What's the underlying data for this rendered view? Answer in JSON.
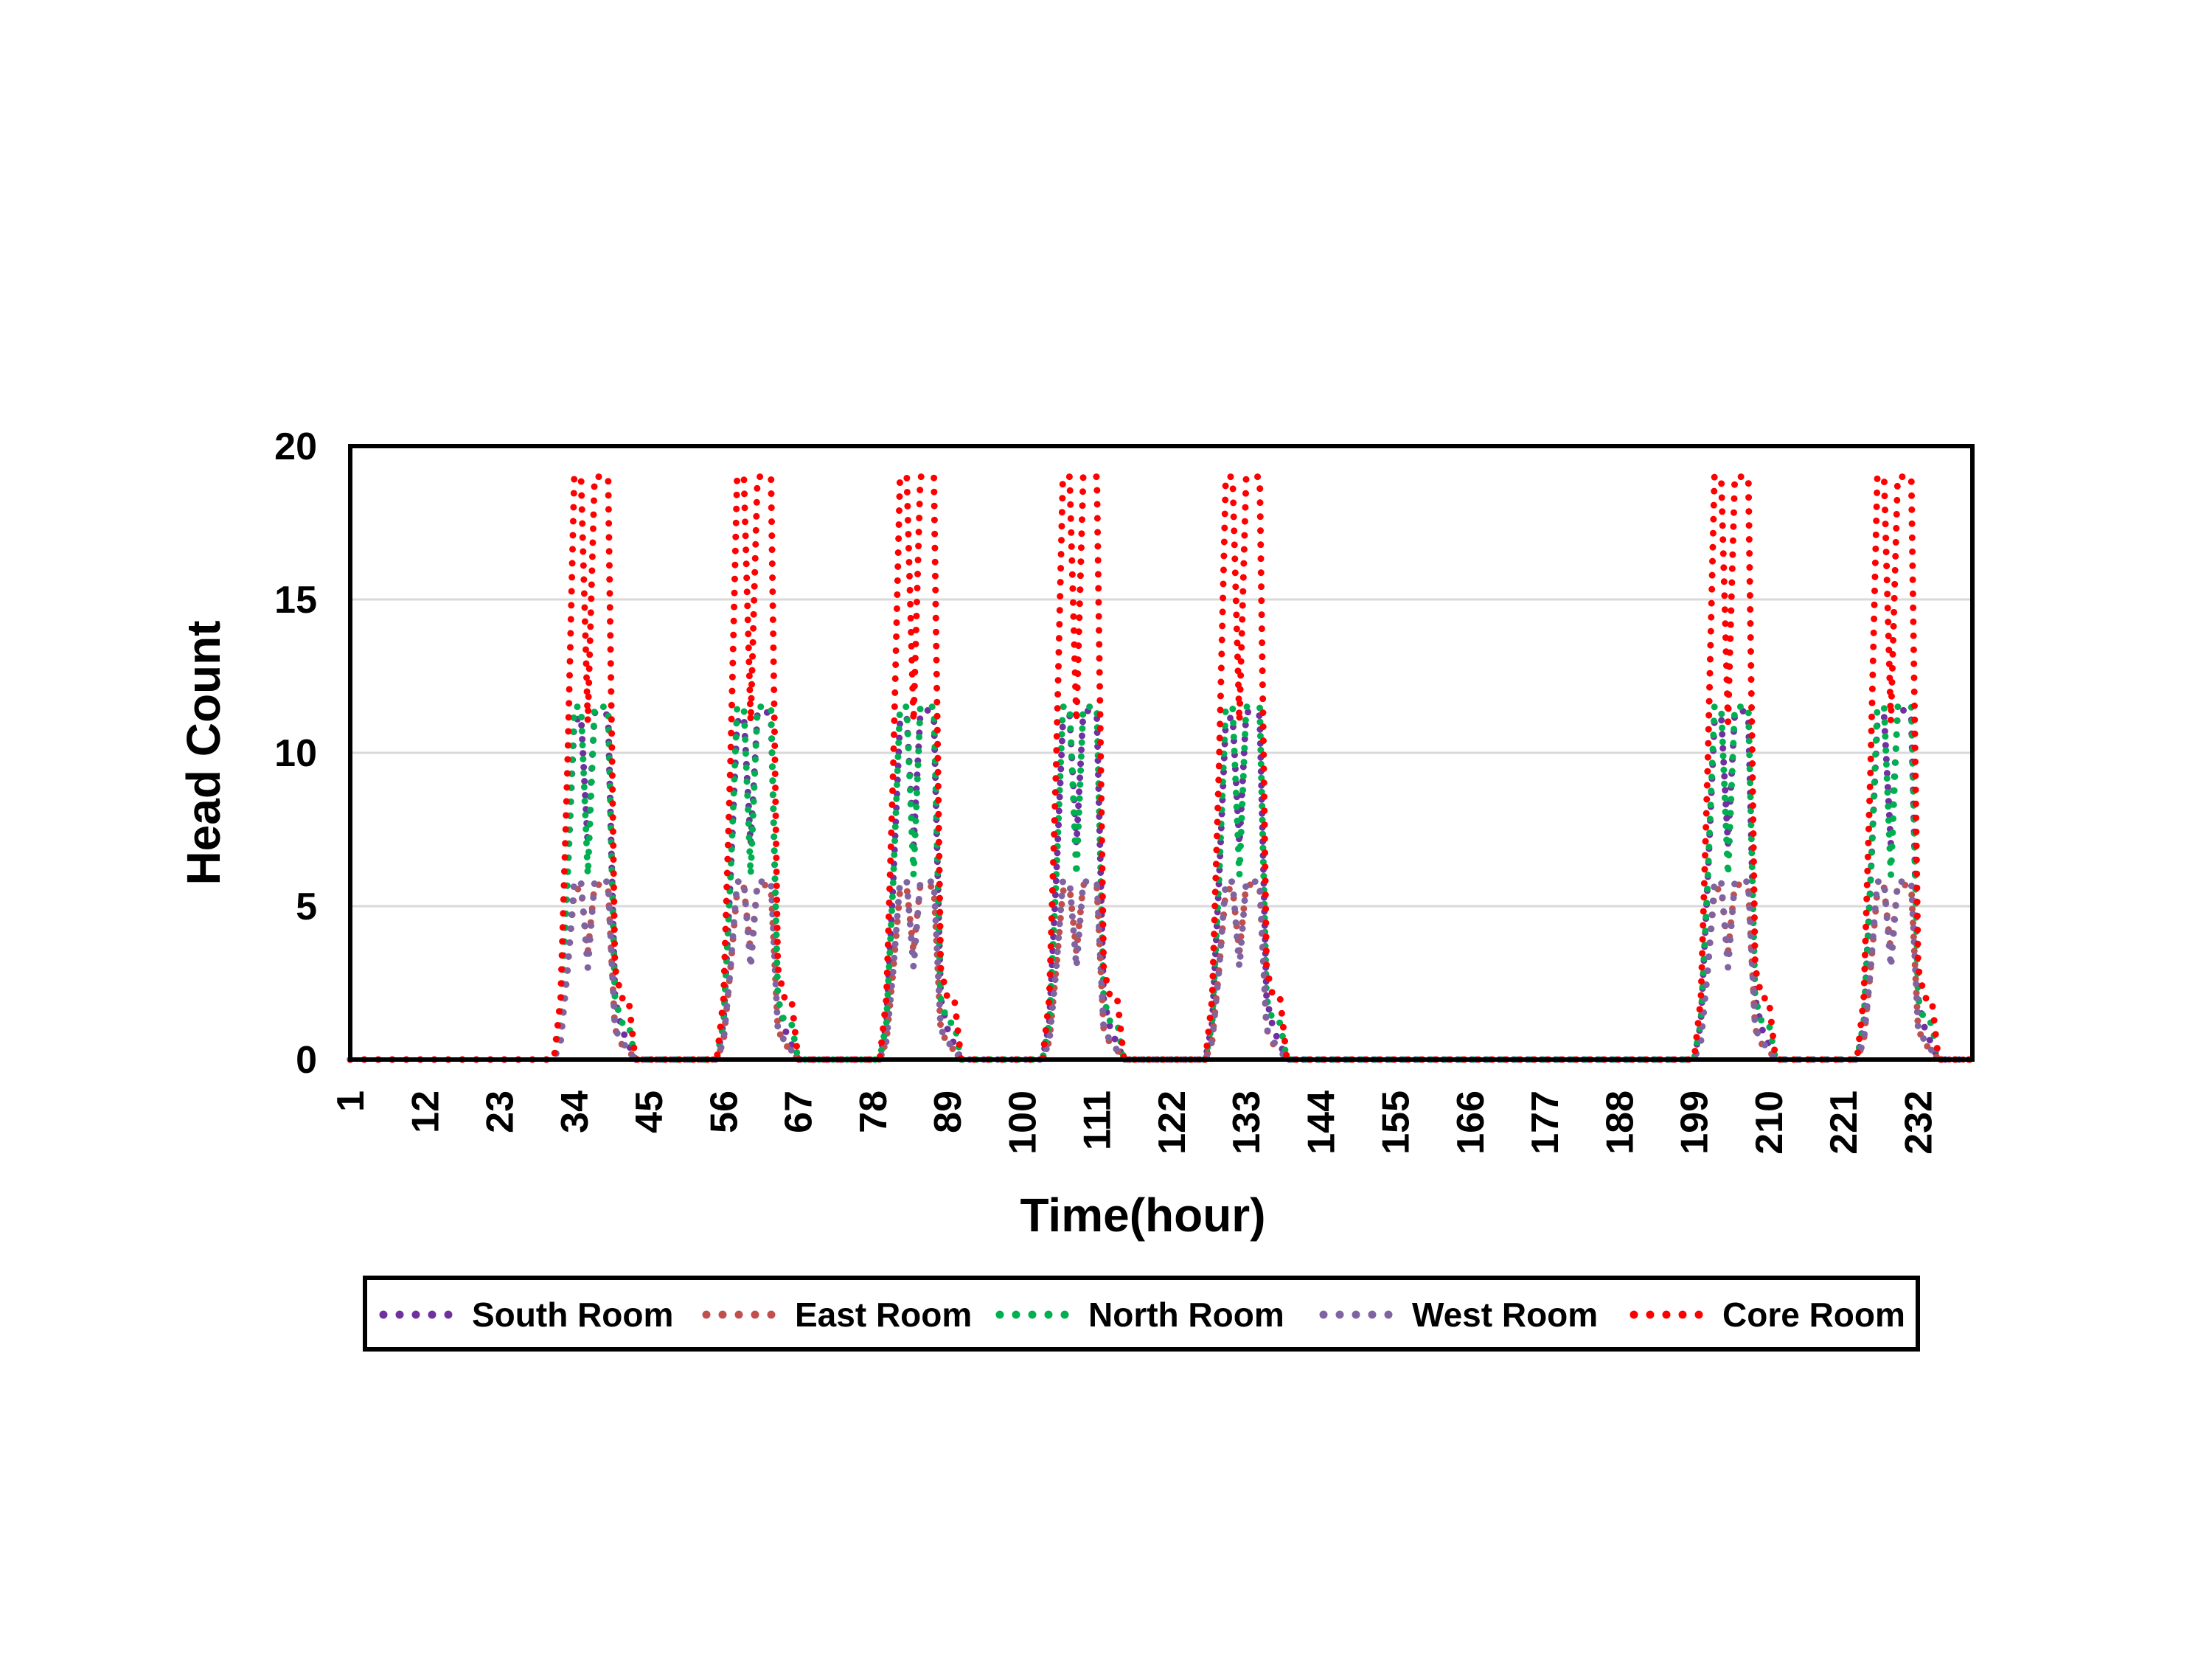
{
  "chart_data": {
    "type": "line",
    "title": "",
    "xlabel": "Time(hour)",
    "ylabel": "Head Count",
    "xlim": [
      1,
      240
    ],
    "ylim": [
      0,
      20
    ],
    "yticks": [
      "0",
      "5",
      "10",
      "15",
      "20"
    ],
    "xticks": [
      "1",
      "12",
      "23",
      "34",
      "45",
      "56",
      "67",
      "78",
      "89",
      "100",
      "111",
      "122",
      "133",
      "144",
      "155",
      "166",
      "177",
      "188",
      "199",
      "210",
      "221",
      "232"
    ],
    "xtick_values": [
      1,
      12,
      23,
      34,
      45,
      56,
      67,
      78,
      89,
      100,
      111,
      122,
      133,
      144,
      155,
      166,
      177,
      188,
      199,
      210,
      221,
      232
    ],
    "grid": "horizontal",
    "legend_position": "bottom",
    "line_style": "dotted",
    "working_days_start_hour": [
      31,
      55,
      79,
      103,
      127,
      199,
      223
    ],
    "daily_profile_x": [
      0,
      1,
      2,
      3,
      4,
      5,
      6,
      7,
      8,
      9,
      10,
      11,
      12,
      13,
      14,
      15,
      16
    ],
    "series": [
      {
        "name": "South Room",
        "color": "#7030A0",
        "daily_profile": [
          0,
          1.2,
          5.8,
          11.0,
          11.2,
          7.0,
          11.3,
          11.4,
          11.2,
          2.0,
          1.0,
          0.5,
          0,
          0,
          0,
          0,
          0
        ]
      },
      {
        "name": "East Room",
        "color": "#C0504D",
        "daily_profile": [
          0,
          0.6,
          2.9,
          5.5,
          5.6,
          3.5,
          5.7,
          5.7,
          5.6,
          1.0,
          0.5,
          0.3,
          0,
          0,
          0,
          0,
          0
        ]
      },
      {
        "name": "North Room",
        "color": "#00B050",
        "daily_profile": [
          0,
          1.2,
          5.8,
          11.5,
          11.5,
          6.0,
          11.5,
          11.5,
          11.5,
          2.0,
          1.2,
          1.2,
          0,
          0,
          0,
          0,
          0
        ]
      },
      {
        "name": "West Room",
        "color": "#8064A2",
        "daily_profile": [
          0,
          0.6,
          2.9,
          5.8,
          5.8,
          3.0,
          5.8,
          5.8,
          5.8,
          1.0,
          0.6,
          0.3,
          0,
          0,
          0,
          0,
          0
        ]
      },
      {
        "name": "Core Room",
        "color": "#FF0000",
        "daily_profile": [
          0,
          2.0,
          9.5,
          19.0,
          19.0,
          11.0,
          19.0,
          19.0,
          19.0,
          3.0,
          2.0,
          2.0,
          0,
          0,
          0,
          0,
          0
        ]
      }
    ]
  }
}
